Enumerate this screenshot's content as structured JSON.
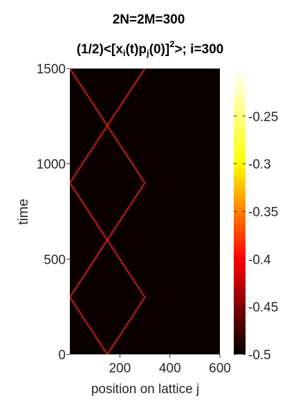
{
  "chart_data": {
    "type": "heatmap",
    "title_line1": "2N=2M=300",
    "title_line2": {
      "a": "(1/2)<[x",
      "sub_i": "i",
      "b": "(t)p",
      "sub_j": "j",
      "c": "(0)]",
      "sup": "2",
      "d": ">; i=300"
    },
    "xlabel": "position on lattice j",
    "ylabel": "time",
    "xlim": [
      0,
      600
    ],
    "ylim": [
      0,
      1500
    ],
    "xticks": [
      200,
      400,
      600
    ],
    "yticks": [
      0,
      500,
      1000,
      1500
    ],
    "colorbar": {
      "ticks": [
        -0.25,
        -0.3,
        -0.35,
        -0.4,
        -0.45,
        -0.5
      ],
      "tick_labels": [
        "-0.25",
        "-0.3",
        "-0.35",
        "-0.4",
        "-0.45",
        "-0.5"
      ],
      "range": [
        -0.5,
        -0.2
      ],
      "colormap": "hot",
      "gradient": [
        "#000000",
        "#ff0000",
        "#ffff00",
        "#ffffff"
      ]
    },
    "source_site": 150,
    "lattice_edge": 300,
    "wave_speed_sites_per_time": 0.5,
    "background_color": "#0b0000",
    "front_color": "#ff2a1a",
    "grid": false
  }
}
